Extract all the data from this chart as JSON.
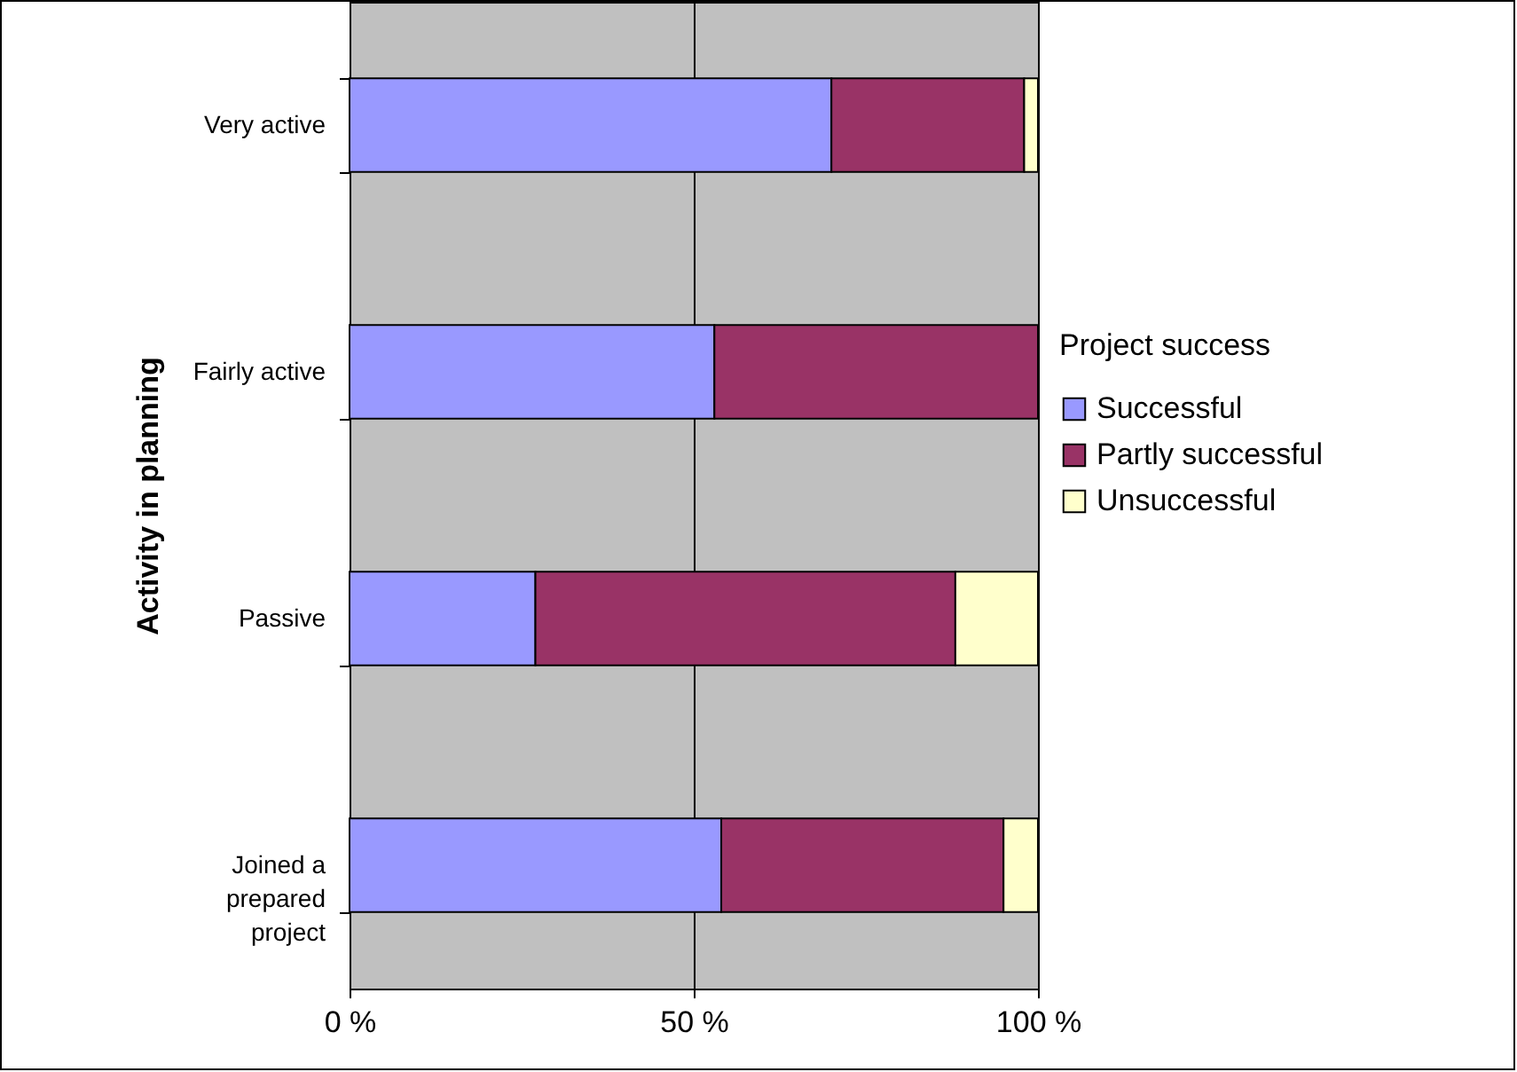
{
  "chart_data": {
    "type": "bar",
    "orientation": "horizontal",
    "stacked": true,
    "ylabel": "Activity in planning",
    "legend_title": "Project success",
    "legend": "right",
    "grid": "x",
    "categories": [
      "Very active",
      "Fairly active",
      "Passive",
      "Joined a prepared project"
    ],
    "series": [
      {
        "name": "Successful",
        "color": "#9999ff",
        "values": [
          70,
          53,
          27,
          54
        ]
      },
      {
        "name": "Partly successful",
        "color": "#993366",
        "values": [
          28,
          47,
          61,
          41
        ]
      },
      {
        "name": "Unsuccessful",
        "color": "#ffffcc",
        "values": [
          2,
          0,
          12,
          5
        ]
      }
    ],
    "xlim": [
      0,
      100
    ],
    "xticks": [
      {
        "value": 0,
        "label": "0 %"
      },
      {
        "value": 50,
        "label": "50 %"
      },
      {
        "value": 100,
        "label": "100 %"
      }
    ]
  }
}
